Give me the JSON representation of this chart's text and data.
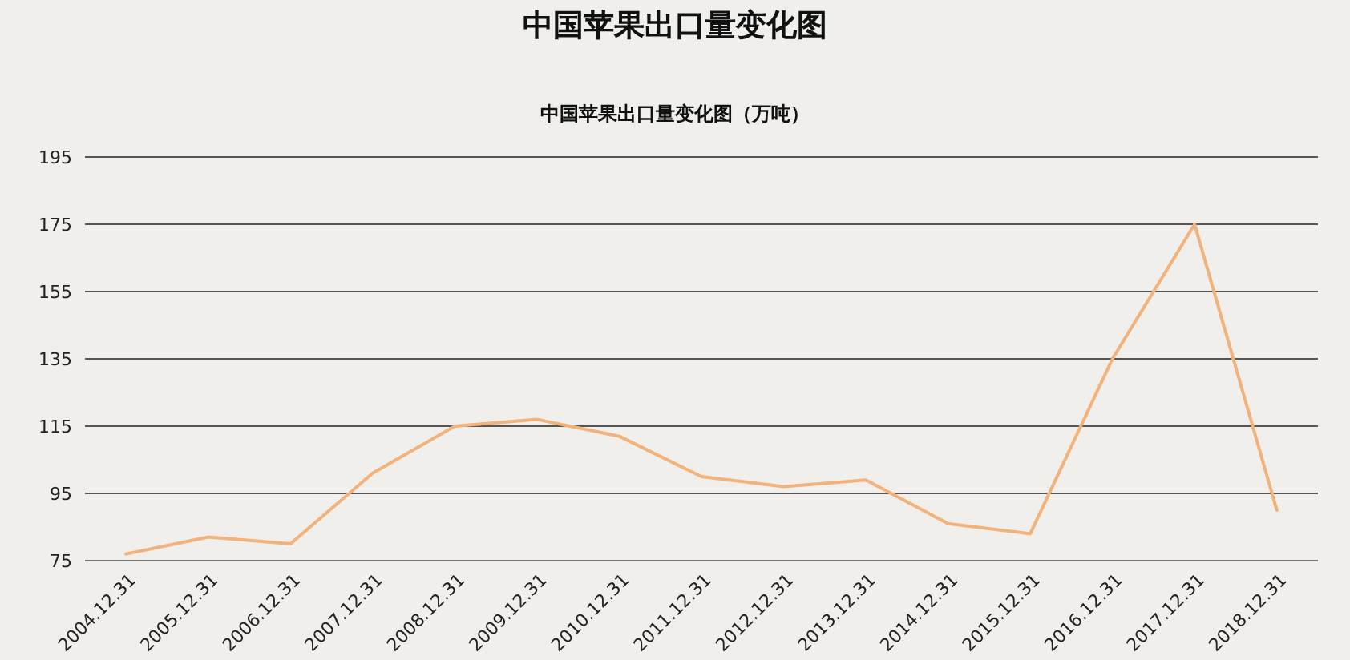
{
  "chart_data": {
    "type": "line",
    "title": "中国苹果出口量变化图",
    "subtitle": "中国苹果出口量变化图（万吨）",
    "categories": [
      "2004.12.31",
      "2005.12.31",
      "2006.12.31",
      "2007.12.31",
      "2008.12.31",
      "2009.12.31",
      "2010.12.31",
      "2011.12.31",
      "2012.12.31",
      "2013.12.31",
      "2014.12.31",
      "2015.12.31",
      "2016.12.31",
      "2017.12.31",
      "2018.12.31"
    ],
    "series": [
      {
        "color": "#f2b27c",
        "values": [
          77,
          82,
          80,
          101,
          115,
          117,
          112,
          100,
          97,
          99,
          86,
          83,
          135,
          175,
          90
        ]
      }
    ],
    "ylim": [
      75,
      195
    ],
    "yticks": [
      75,
      95,
      115,
      135,
      155,
      175,
      195
    ],
    "grid": "y",
    "marker": "none",
    "line_style": "solid"
  }
}
